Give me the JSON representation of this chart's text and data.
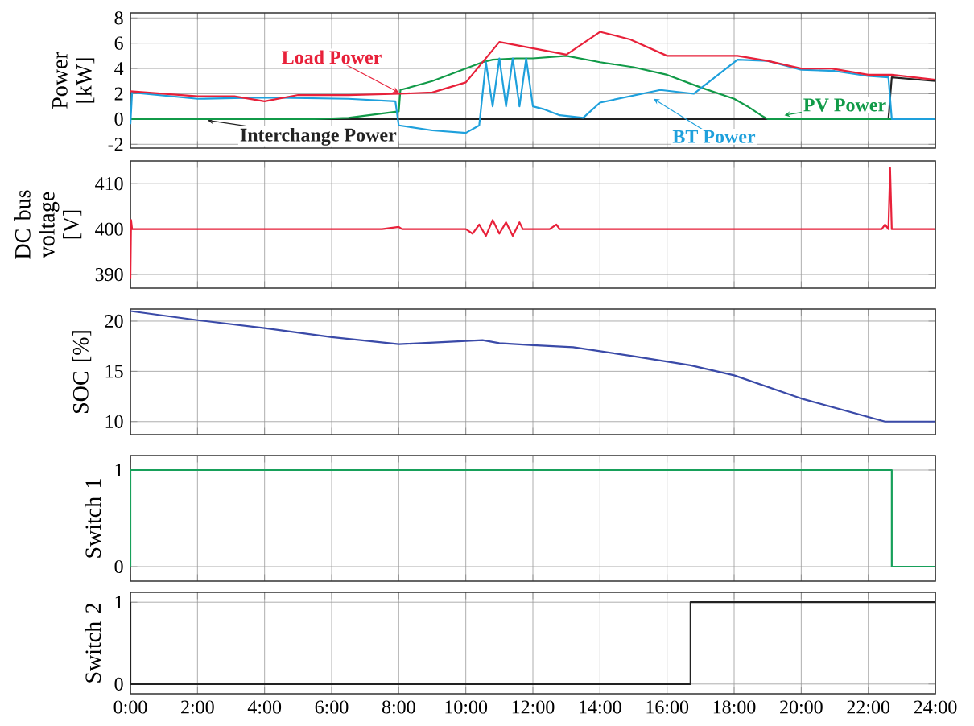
{
  "chart_data": [
    {
      "type": "line",
      "ylabel": "Power [kW]",
      "xlim": [
        0,
        24
      ],
      "xticks": [
        0,
        2,
        4,
        6,
        8,
        10,
        12,
        14,
        16,
        18,
        20,
        22,
        24
      ],
      "ylim": [
        -2.3,
        8.4
      ],
      "yticks": [
        -2,
        0,
        2,
        4,
        6,
        8
      ],
      "grid": true,
      "tick_labels": "y",
      "marker": "none",
      "line_style": "solid",
      "series": [
        {
          "name": "Interchange Power",
          "color": "#222222",
          "x": [
            0,
            22.6,
            22.7,
            24
          ],
          "values": [
            0,
            0,
            3.3,
            3.0
          ]
        },
        {
          "name": "PV Power",
          "color": "#119a48",
          "x": [
            0,
            5.5,
            6.5,
            8,
            8.05,
            9,
            10.5,
            10.8,
            11.5,
            12,
            13,
            14,
            15,
            16,
            17,
            18,
            18.4,
            18.8,
            19,
            24
          ],
          "values": [
            0,
            0,
            0.1,
            0.6,
            2.3,
            3.0,
            4.5,
            4.7,
            4.8,
            4.8,
            5.0,
            4.5,
            4.1,
            3.5,
            2.5,
            1.6,
            1.0,
            0.3,
            0,
            0
          ]
        },
        {
          "name": "BT Power",
          "color": "#1ea0dc",
          "x": [
            0,
            0.05,
            2,
            4,
            6.5,
            7.9,
            8,
            9,
            10,
            10.4,
            10.6,
            10.8,
            11,
            11.2,
            11.4,
            11.6,
            11.8,
            12,
            12.3,
            12.8,
            13.5,
            14,
            15.8,
            16.8,
            18.1,
            19,
            20,
            21,
            22,
            22.6,
            22.7,
            24
          ],
          "values": [
            -0.4,
            2.1,
            1.6,
            1.7,
            1.6,
            1.4,
            -0.5,
            -0.9,
            -1.1,
            -0.5,
            4.5,
            1.0,
            4.8,
            1.0,
            4.8,
            1.0,
            4.8,
            1.0,
            0.8,
            0.3,
            0.1,
            1.3,
            2.3,
            2.0,
            4.7,
            4.6,
            3.9,
            3.8,
            3.4,
            3.3,
            0,
            0
          ]
        },
        {
          "name": "Load Power",
          "color": "#e8213a",
          "x": [
            0,
            2,
            3.1,
            4,
            5,
            6.5,
            8,
            9,
            10,
            11,
            13,
            14,
            14.9,
            16,
            18.1,
            19,
            20,
            20.9,
            22,
            22.7,
            24
          ],
          "values": [
            2.2,
            1.8,
            1.8,
            1.4,
            1.9,
            1.9,
            2.0,
            2.1,
            2.9,
            6.1,
            5.1,
            6.9,
            6.3,
            5.0,
            5.0,
            4.6,
            4.0,
            4.0,
            3.5,
            3.5,
            3.1
          ]
        }
      ]
    },
    {
      "type": "line",
      "ylabel": "DC bus voltage [V]",
      "xlim": [
        0,
        24
      ],
      "xticks": [
        0,
        2,
        4,
        6,
        8,
        10,
        12,
        14,
        16,
        18,
        20,
        22,
        24
      ],
      "ylim": [
        387,
        415
      ],
      "yticks": [
        390,
        400,
        410
      ],
      "grid": true,
      "tick_labels": "y",
      "marker": "none",
      "line_style": "solid",
      "series": [
        {
          "color": "#e8213a",
          "x": [
            0,
            0.02,
            0.05,
            7.5,
            8,
            8.1,
            10,
            10.2,
            10.4,
            10.6,
            10.8,
            11,
            11.2,
            11.4,
            11.6,
            11.7,
            12.5,
            12.7,
            12.8,
            22.4,
            22.5,
            22.6,
            22.65,
            22.7,
            24
          ],
          "values": [
            389,
            402,
            400,
            400,
            400.5,
            400,
            400,
            399,
            401,
            398.5,
            402,
            399,
            401.5,
            398.5,
            401.5,
            400,
            400,
            401,
            400,
            400,
            401,
            400,
            413.5,
            400,
            400
          ]
        }
      ]
    },
    {
      "type": "line",
      "ylabel": "SOC [%]",
      "xlim": [
        0,
        24
      ],
      "xticks": [
        0,
        2,
        4,
        6,
        8,
        10,
        12,
        14,
        16,
        18,
        20,
        22,
        24
      ],
      "ylim": [
        8.7,
        21.2
      ],
      "yticks": [
        10,
        15,
        20
      ],
      "grid": true,
      "tick_labels": "y",
      "marker": "none",
      "line_style": "solid",
      "series": [
        {
          "color": "#3a4aa8",
          "x": [
            0,
            2,
            4,
            6,
            8,
            10.5,
            11,
            12,
            13.2,
            15,
            16.7,
            18,
            20,
            22.5,
            24
          ],
          "values": [
            21,
            20.1,
            19.3,
            18.4,
            17.7,
            18.1,
            17.8,
            17.6,
            17.4,
            16.5,
            15.6,
            14.6,
            12.3,
            10,
            10
          ]
        }
      ]
    },
    {
      "type": "line",
      "ylabel": "Switch 1",
      "xlim": [
        0,
        24
      ],
      "xticks": [
        0,
        2,
        4,
        6,
        8,
        10,
        12,
        14,
        16,
        18,
        20,
        22,
        24
      ],
      "ylim": [
        -0.15,
        1.15
      ],
      "yticks": [
        0,
        1
      ],
      "grid": true,
      "tick_labels": "y",
      "marker": "none",
      "line_style": "solid",
      "series": [
        {
          "color": "#17a05a",
          "x": [
            0,
            0,
            22.7,
            22.7,
            24
          ],
          "values": [
            0,
            1,
            1,
            0,
            0
          ]
        }
      ]
    },
    {
      "type": "line",
      "ylabel": "Switch 2",
      "xlim": [
        0,
        24
      ],
      "xticks": [
        {
          "value": 0,
          "label": "0:00"
        },
        {
          "value": 2,
          "label": "2:00"
        },
        {
          "value": 4,
          "label": "4:00"
        },
        {
          "value": 6,
          "label": "6:00"
        },
        {
          "value": 8,
          "label": "8:00"
        },
        {
          "value": 10,
          "label": "10:00"
        },
        {
          "value": 12,
          "label": "12:00"
        },
        {
          "value": 14,
          "label": "14:00"
        },
        {
          "value": 16,
          "label": "16:00"
        },
        {
          "value": 18,
          "label": "18:00"
        },
        {
          "value": 20,
          "label": "20:00"
        },
        {
          "value": 22,
          "label": "22:00"
        },
        {
          "value": 24,
          "label": "24:00"
        }
      ],
      "ylim": [
        -0.12,
        1.12
      ],
      "yticks": [
        0,
        1
      ],
      "grid": true,
      "marker": "none",
      "line_style": "solid",
      "series": [
        {
          "color": "#222222",
          "x": [
            0,
            0,
            16.7,
            16.7,
            24
          ],
          "values": [
            1,
            0,
            0,
            1,
            1
          ]
        }
      ]
    }
  ]
}
